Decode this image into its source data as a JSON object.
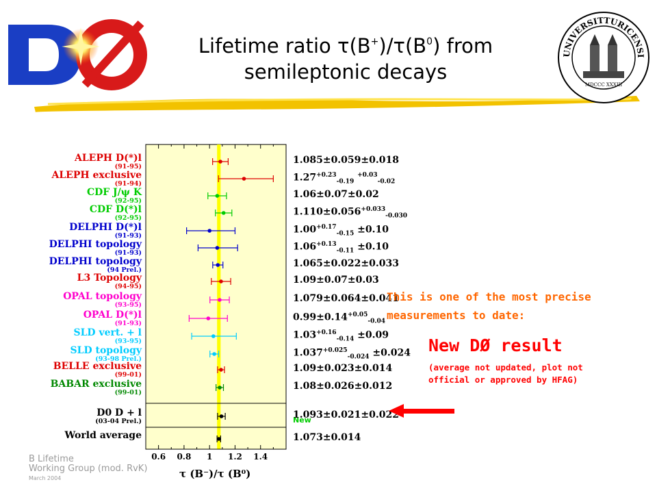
{
  "slide": {
    "title_line1_prefix": "Lifetime ratio ",
    "title_line1_tau1": "τ",
    "title_line1_bplus": "(B",
    "title_line1_plus_sup": "+",
    "title_line1_mid": ")/",
    "title_line1_tau2": "τ",
    "title_line1_b0": "(B",
    "title_line1_zero_sup": "0",
    "title_line1_suffix": ") from",
    "title_line2": "semileptonic decays",
    "note_line1": "This is one of the most precise",
    "note_line2": "measurements to date:",
    "new_result": "New DØ result",
    "new_result_sub1": "(average not updated, plot not",
    "new_result_sub2": "official or approved by HFAG)",
    "credit_line1": "B Lifetime",
    "credit_line2": "Working Group (mod. RvK)",
    "credit_line3": "March 2004",
    "seal_top_text": "UNIVERSITAS",
    "seal_right_text": "TURICENSIS",
    "seal_bottom_text": "MDCCC XXXIII",
    "colors": {
      "highlight_band": "#ffff00",
      "panel_bg": "#ffffcc",
      "arrow": "#ff0000",
      "note": "#ff6600"
    }
  },
  "chart_data": {
    "type": "scatter",
    "xlabel": "τ (B⁻)/τ (B⁰)",
    "xlim": [
      0.5,
      1.6
    ],
    "xticks": [
      0.6,
      0.8,
      1,
      1.2,
      1.4
    ],
    "xtick_labels": [
      "0.6",
      "0.8",
      "1",
      "1.2",
      "1.4"
    ],
    "band": {
      "low": 1.059,
      "high": 1.087
    },
    "grid": false,
    "measurements": [
      {
        "name": "ALEPH D(*)l",
        "years": "(91-95)",
        "color": "#dd0000",
        "value": 1.085,
        "err_low": 0.061,
        "err_high": 0.061,
        "result_html": "1.085±0.059±0.018"
      },
      {
        "name": "ALEPH exclusive",
        "years": "(91-94)",
        "color": "#dd0000",
        "value": 1.27,
        "err_low": 0.2,
        "err_high": 0.23,
        "result_html": "1.27<sup>+0.23</sup><sub>-0.19</sub> <sup>+0.03</sup><sub>-0.02</sub>"
      },
      {
        "name": "CDF J/ψ K",
        "years": "(92-95)",
        "color": "#00cc00",
        "value": 1.06,
        "err_low": 0.073,
        "err_high": 0.073,
        "result_html": "1.06±0.07±0.02"
      },
      {
        "name": "CDF D(*)l",
        "years": "(92-95)",
        "color": "#00cc00",
        "value": 1.11,
        "err_low": 0.064,
        "err_high": 0.065,
        "result_html": "1.110±0.056<sup>+0.033</sup><sub>-0.030</sub>"
      },
      {
        "name": "DELPHI D(*)l",
        "years": "(91-93)",
        "color": "#0000cc",
        "value": 1.0,
        "err_low": 0.18,
        "err_high": 0.2,
        "result_html": "1.00<sup>+0.17</sup><sub>-0.15</sub> ±0.10"
      },
      {
        "name": "DELPHI topology",
        "years": "(91-93)",
        "color": "#0000cc",
        "value": 1.06,
        "err_low": 0.15,
        "err_high": 0.16,
        "result_html": "1.06<sup>+0.13</sup><sub>-0.11</sub> ±0.10"
      },
      {
        "name": "DELPHI topology",
        "years": "(94 Prel.)",
        "color": "#0000cc",
        "value": 1.065,
        "err_low": 0.04,
        "err_high": 0.04,
        "result_html": "1.065±0.022±0.033"
      },
      {
        "name": "L3 Topology",
        "years": "(94-95)",
        "color": "#dd0000",
        "value": 1.09,
        "err_low": 0.076,
        "err_high": 0.076,
        "result_html": "1.09±0.07±0.03"
      },
      {
        "name": "OPAL topology",
        "years": "(93-95)",
        "color": "#ff00cc",
        "value": 1.079,
        "err_low": 0.076,
        "err_high": 0.076,
        "result_html": "1.079±0.064±0.041"
      },
      {
        "name": "OPAL D(*)l",
        "years": "(91-93)",
        "color": "#ff00cc",
        "value": 0.99,
        "err_low": 0.15,
        "err_high": 0.15,
        "result_html": "0.99±0.14<sup>+0.05</sup><sub>-0.04</sub>"
      },
      {
        "name": "SLD vert. + l",
        "years": "(93-95)",
        "color": "#00ccff",
        "value": 1.03,
        "err_low": 0.17,
        "err_high": 0.18,
        "result_html": "1.03<sup>+0.16</sup><sub>-0.14</sub> ±0.09"
      },
      {
        "name": "SLD topology",
        "years": "(93-98 Prel.)",
        "color": "#00ccff",
        "value": 1.037,
        "err_low": 0.034,
        "err_high": 0.035,
        "result_html": "1.037<sup>+0.025</sup><sub>-0.024</sub> ±0.024"
      },
      {
        "name": "BELLE exclusive",
        "years": "(99-01)",
        "color": "#dd0000",
        "value": 1.09,
        "err_low": 0.027,
        "err_high": 0.027,
        "result_html": "1.09±0.023±0.014"
      },
      {
        "name": "BABAR exclusive",
        "years": "(99-01)",
        "color": "#008800",
        "value": 1.08,
        "err_low": 0.029,
        "err_high": 0.029,
        "result_html": "1.08±0.026±0.012"
      },
      {
        "name": "D0 D + l",
        "years": "(03-04 Prel.)",
        "color": "#000000",
        "value": 1.093,
        "err_low": 0.03,
        "err_high": 0.03,
        "result_html": "1.093±0.021±0.022",
        "annotation": "New"
      },
      {
        "name": "World average",
        "years": "",
        "color": "#000000",
        "value": 1.073,
        "err_low": 0.014,
        "err_high": 0.014,
        "result_html": "1.073±0.014"
      }
    ]
  }
}
